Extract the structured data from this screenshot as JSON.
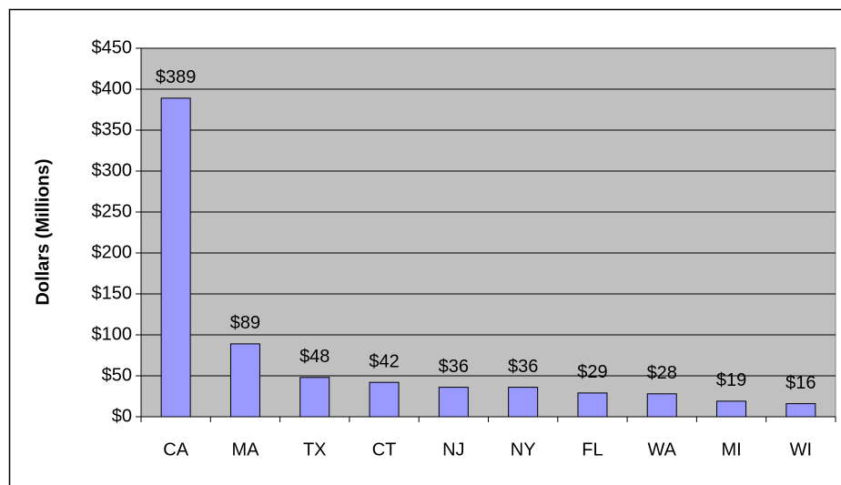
{
  "chart_data": {
    "type": "bar",
    "y_axis_label": "Dollars (Millions)",
    "categories": [
      "CA",
      "MA",
      "TX",
      "CT",
      "NJ",
      "NY",
      "FL",
      "WA",
      "MI",
      "WI"
    ],
    "values": [
      389,
      89,
      48,
      42,
      36,
      36,
      29,
      28,
      19,
      16
    ],
    "value_labels": [
      "$389",
      "$89",
      "$48",
      "$42",
      "$36",
      "$36",
      "$29",
      "$28",
      "$19",
      "$16"
    ],
    "color": "#9999ff",
    "ylim": [
      0,
      450
    ],
    "yticks": [
      {
        "value": 0,
        "label": "$0"
      },
      {
        "value": 50,
        "label": "$50"
      },
      {
        "value": 100,
        "label": "$100"
      },
      {
        "value": 150,
        "label": "$150"
      },
      {
        "value": 200,
        "label": "$200"
      },
      {
        "value": 250,
        "label": "$250"
      },
      {
        "value": 300,
        "label": "$300"
      },
      {
        "value": 350,
        "label": "$350"
      },
      {
        "value": 400,
        "label": "$400"
      },
      {
        "value": 450,
        "label": "$450"
      }
    ],
    "grid": true
  }
}
